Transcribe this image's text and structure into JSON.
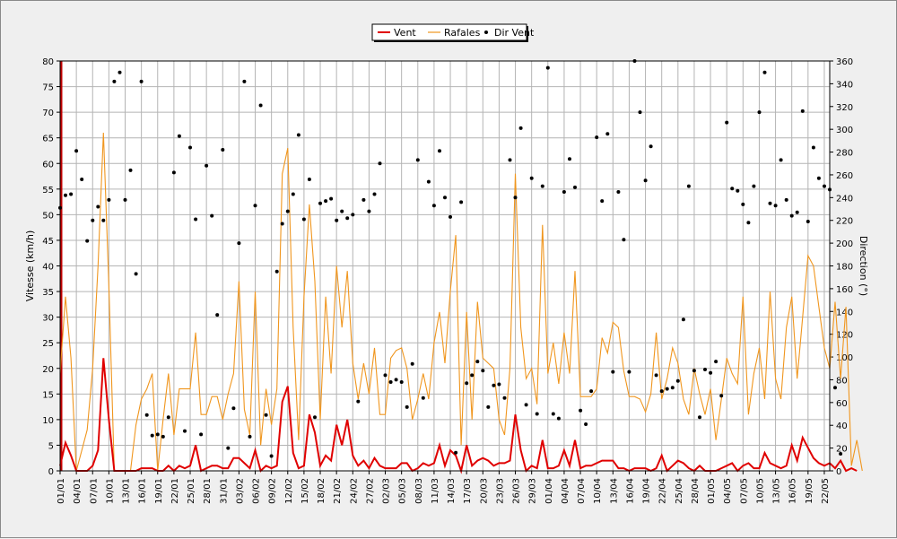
{
  "chart_data": {
    "type": "line",
    "legend": {
      "placement": "top-center",
      "entries": [
        "Vent",
        "Rafales",
        "Dir Vent"
      ]
    },
    "colors": {
      "Vent": "#e00000",
      "Rafales": "#f0961e",
      "Dir Vent": "#000000",
      "grid": "#b4b4b4",
      "plot_bg": "#ffffff",
      "start_marker": "#c00000"
    },
    "grid": true,
    "x_ticks": [
      "01/01",
      "04/01",
      "07/01",
      "10/01",
      "13/01",
      "16/01",
      "19/01",
      "22/01",
      "25/01",
      "28/01",
      "31/01",
      "03/02",
      "06/02",
      "09/02",
      "12/02",
      "15/02",
      "18/02",
      "21/02",
      "24/02",
      "27/02",
      "02/03",
      "05/03",
      "08/03",
      "11/03",
      "14/03",
      "17/03",
      "20/03",
      "23/03",
      "26/03",
      "29/03",
      "01/04",
      "04/04",
      "07/04",
      "10/04",
      "13/04",
      "16/04",
      "19/04",
      "22/04",
      "25/04",
      "28/04",
      "01/05",
      "04/05",
      "07/05",
      "10/05",
      "13/05",
      "16/05",
      "19/05",
      "22/05"
    ],
    "n_days": 143,
    "y_left": {
      "label": "Vitesse (km/h)",
      "ylim": [
        0,
        80
      ],
      "ticks": [
        0,
        5,
        10,
        15,
        20,
        25,
        30,
        35,
        40,
        45,
        50,
        55,
        60,
        65,
        70,
        75,
        80
      ]
    },
    "y_right": {
      "label": "Direction (°)",
      "ylim": [
        0,
        360
      ],
      "ticks": [
        0,
        20,
        40,
        60,
        80,
        100,
        120,
        140,
        160,
        180,
        200,
        220,
        240,
        260,
        280,
        300,
        320,
        340,
        360
      ]
    },
    "series": [
      {
        "name": "Vent",
        "axis": "left",
        "values": [
          1,
          5.5,
          3,
          0,
          0,
          0,
          1,
          4,
          22,
          10,
          0,
          0,
          0,
          0,
          0,
          0.5,
          0.5,
          0.5,
          0,
          0,
          1,
          0,
          1,
          0.5,
          1,
          5,
          0,
          0.5,
          1,
          1,
          0.5,
          0.5,
          2.5,
          2.5,
          1.5,
          0.5,
          4,
          0,
          1,
          0.5,
          1,
          13.5,
          16.5,
          3.5,
          0.5,
          1,
          11,
          7.5,
          1,
          3,
          2,
          9,
          5,
          10,
          3,
          1,
          2,
          0.5,
          2.5,
          1,
          0.5,
          0.5,
          0.5,
          1.5,
          1.5,
          0,
          0.5,
          1.5,
          1,
          1.5,
          5,
          1,
          4,
          3,
          0,
          5,
          1,
          2,
          2.5,
          2,
          1,
          1.5,
          1.5,
          2,
          11,
          4,
          0,
          1,
          0.5,
          6,
          0.5,
          0.5,
          1,
          4,
          1,
          6,
          0.5,
          1,
          1,
          1.5,
          2,
          2,
          2,
          0.5,
          0.5,
          0,
          0.5,
          0.5,
          0.5,
          0,
          0.5,
          3,
          0,
          1,
          2,
          1.5,
          0.5,
          0,
          1,
          0,
          0,
          0,
          0.5,
          1,
          1.5,
          0,
          1,
          1.5,
          0.5,
          0.5,
          3.5,
          1.5,
          1,
          0.5,
          1,
          5,
          2,
          6.5,
          4.5,
          2.5,
          1.5,
          1,
          1.5,
          0.5,
          2,
          0,
          0.5,
          0
        ]
      },
      {
        "name": "Rafales",
        "axis": "left",
        "values": [
          19,
          34,
          22,
          0,
          4,
          8,
          20,
          40,
          66,
          36,
          0,
          0,
          0,
          0,
          9,
          14,
          16,
          19,
          0,
          10,
          19,
          7,
          16,
          16,
          16,
          27,
          11,
          11,
          14.5,
          14.5,
          10,
          15,
          19,
          37,
          12,
          7,
          35,
          5,
          16,
          9,
          16,
          58,
          63,
          28,
          6,
          34,
          52,
          37,
          10,
          34,
          19,
          40,
          28,
          39,
          21,
          14,
          21,
          15,
          24,
          11,
          11,
          22,
          23.5,
          24,
          20,
          10,
          14,
          19,
          14,
          25,
          31,
          21,
          35,
          46,
          5,
          31,
          10,
          33,
          22,
          21,
          20,
          10,
          7,
          20,
          58,
          28,
          18,
          20,
          13,
          48,
          19,
          25,
          17,
          27,
          19,
          39,
          14.5,
          14.5,
          14.5,
          16,
          26,
          23,
          29,
          28,
          19.5,
          14.5,
          14.5,
          14,
          11.5,
          15,
          27,
          14,
          18,
          24,
          21,
          14,
          11,
          20,
          15,
          11,
          16,
          6,
          14,
          22,
          19,
          17,
          34,
          11,
          19,
          24,
          14,
          35,
          18,
          14,
          28,
          34,
          18,
          30,
          42,
          40,
          32,
          24,
          20,
          33,
          18,
          32,
          1,
          6,
          0
        ]
      },
      {
        "name": "Dir Vent",
        "axis": "right",
        "markers": "dots",
        "values": [
          231,
          242,
          243,
          281,
          256,
          202,
          220,
          232,
          220,
          238,
          342,
          350,
          238,
          264,
          173,
          342,
          49,
          31,
          32,
          30,
          47,
          262,
          294,
          35,
          284,
          221,
          32,
          268,
          224,
          137,
          282,
          20,
          55,
          200,
          342,
          30,
          233,
          321,
          49,
          13,
          175,
          217,
          228,
          243,
          295,
          221,
          256,
          47,
          235,
          237,
          239,
          220,
          228,
          222,
          225,
          61,
          238,
          228,
          243,
          270,
          84,
          78,
          80,
          78,
          56,
          94,
          273,
          64,
          254,
          233,
          281,
          240,
          223,
          16,
          236,
          77,
          84,
          96,
          88,
          56,
          75,
          76,
          64,
          273,
          240,
          301,
          58,
          257,
          50,
          250,
          354,
          50,
          46,
          245,
          274,
          249,
          53,
          41,
          70,
          293,
          237,
          296,
          87,
          245,
          203,
          87,
          360,
          315,
          255,
          285,
          84,
          70,
          72,
          73,
          79,
          133,
          250,
          88,
          47,
          89,
          86,
          96,
          66,
          306,
          248,
          246,
          234,
          218,
          250,
          315,
          350,
          235,
          233,
          273,
          238,
          224,
          227,
          316,
          219,
          284,
          257,
          250,
          247,
          73,
          15
        ]
      }
    ]
  }
}
